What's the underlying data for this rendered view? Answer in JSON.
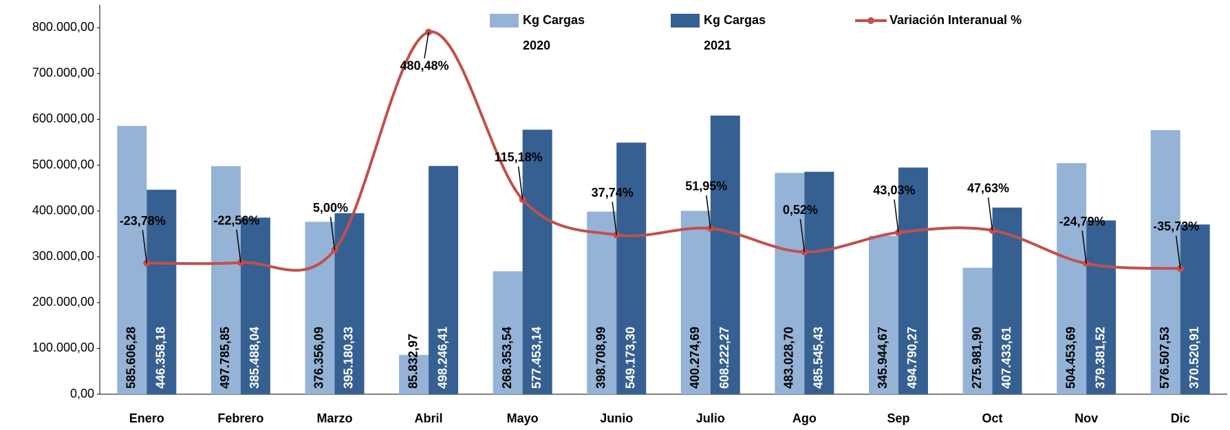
{
  "chart_data": {
    "type": "bar",
    "categories": [
      "Enero",
      "Febrero",
      "Marzo",
      "Abril",
      "Mayo",
      "Junio",
      "Julio",
      "Ago",
      "Sep",
      "Oct",
      "Nov",
      "Dic"
    ],
    "series": [
      {
        "name": "Kg Cargas 2020",
        "color": "#95b3d7",
        "type": "bar",
        "values": [
          585606.28,
          497785.85,
          376356.09,
          85832.97,
          268353.54,
          398708.99,
          400274.69,
          483028.7,
          345944.67,
          275981.9,
          504453.69,
          576507.53
        ],
        "value_labels": [
          "585.606,28",
          "497.785,85",
          "376.356,09",
          "85.832,97",
          "268.353,54",
          "398.708,99",
          "400.274,69",
          "483.028,70",
          "345.944,67",
          "275.981,90",
          "504.453,69",
          "576.507,53"
        ]
      },
      {
        "name": "Kg Cargas 2021",
        "color": "#366092",
        "type": "bar",
        "values": [
          446358.18,
          385488.04,
          395180.33,
          498246.41,
          577453.14,
          549173.3,
          608222.27,
          485545.43,
          494790.27,
          407433.61,
          379381.52,
          370520.91
        ],
        "value_labels": [
          "446.358,18",
          "385.488,04",
          "395.180,33",
          "498.246,41",
          "577.453,14",
          "549.173,30",
          "608.222,27",
          "485.545,43",
          "494.790,27",
          "407.433,61",
          "379.381,52",
          "370.520,91"
        ]
      },
      {
        "name": "Variación Interanual %",
        "color": "#c0504d",
        "type": "line",
        "axis": "y2",
        "values": [
          -23.78,
          -22.56,
          5.0,
          480.48,
          115.18,
          37.74,
          51.95,
          0.52,
          43.03,
          47.63,
          -24.79,
          -35.73
        ],
        "value_labels": [
          "-23,78%",
          "-22,56%",
          "5,00%",
          "480,48%",
          "115,18%",
          "37,74%",
          "51,95%",
          "0,52%",
          "43,03%",
          "47,63%",
          "-24,79%",
          "-35,73%"
        ]
      }
    ],
    "ylim": [
      0,
      850000
    ],
    "yticks": [
      {
        "value": 0,
        "label": "0,00"
      },
      {
        "value": 100000,
        "label": "100.000,00"
      },
      {
        "value": 200000,
        "label": "200.000,00"
      },
      {
        "value": 300000,
        "label": "300.000,00"
      },
      {
        "value": 400000,
        "label": "400.000,00"
      },
      {
        "value": 500000,
        "label": "500.000,00"
      },
      {
        "value": 600000,
        "label": "600.000,00"
      },
      {
        "value": 700000,
        "label": "700.000,00"
      },
      {
        "value": 800000,
        "label": "800.000,00"
      }
    ],
    "y2lim": [
      -310,
      540
    ],
    "grid": false,
    "legend": "top"
  }
}
